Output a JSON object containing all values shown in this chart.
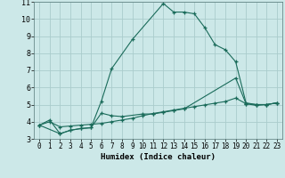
{
  "background_color": "#cce8e8",
  "grid_color": "#aacccc",
  "line_color": "#1a6b5a",
  "xlabel": "Humidex (Indice chaleur)",
  "xlim": [
    -0.5,
    23.5
  ],
  "ylim": [
    3,
    11
  ],
  "xticks": [
    0,
    1,
    2,
    3,
    4,
    5,
    6,
    7,
    8,
    9,
    10,
    11,
    12,
    13,
    14,
    15,
    16,
    17,
    18,
    19,
    20,
    21,
    22,
    23
  ],
  "yticks": [
    3,
    4,
    5,
    6,
    7,
    8,
    9,
    10,
    11
  ],
  "series": [
    {
      "x": [
        0,
        1,
        2,
        3,
        4,
        5,
        6,
        7,
        9,
        12,
        13,
        14,
        15,
        16,
        17,
        18,
        19,
        20,
        21,
        22,
        23
      ],
      "y": [
        3.8,
        4.1,
        3.3,
        3.5,
        3.6,
        3.65,
        5.2,
        7.1,
        8.8,
        10.9,
        10.4,
        10.4,
        10.3,
        9.5,
        8.5,
        8.2,
        7.5,
        5.1,
        5.0,
        5.0,
        5.1
      ]
    },
    {
      "x": [
        0,
        2,
        3,
        4,
        5,
        6,
        7,
        8,
        10,
        11,
        12,
        13,
        14,
        19,
        20,
        21,
        22,
        23
      ],
      "y": [
        3.8,
        3.3,
        3.5,
        3.6,
        3.65,
        4.5,
        4.35,
        4.3,
        4.45,
        4.45,
        4.55,
        4.65,
        4.75,
        6.55,
        5.05,
        4.95,
        5.0,
        5.1
      ]
    },
    {
      "x": [
        0,
        1,
        2,
        3,
        4,
        5,
        6,
        7,
        8,
        9,
        10,
        11,
        12,
        13,
        14,
        15,
        16,
        17,
        18,
        19,
        20,
        21,
        22,
        23
      ],
      "y": [
        3.8,
        4.0,
        3.7,
        3.75,
        3.8,
        3.85,
        3.9,
        4.0,
        4.1,
        4.2,
        4.35,
        4.48,
        4.58,
        4.68,
        4.78,
        4.88,
        4.98,
        5.08,
        5.18,
        5.38,
        5.05,
        5.0,
        5.0,
        5.1
      ]
    }
  ]
}
